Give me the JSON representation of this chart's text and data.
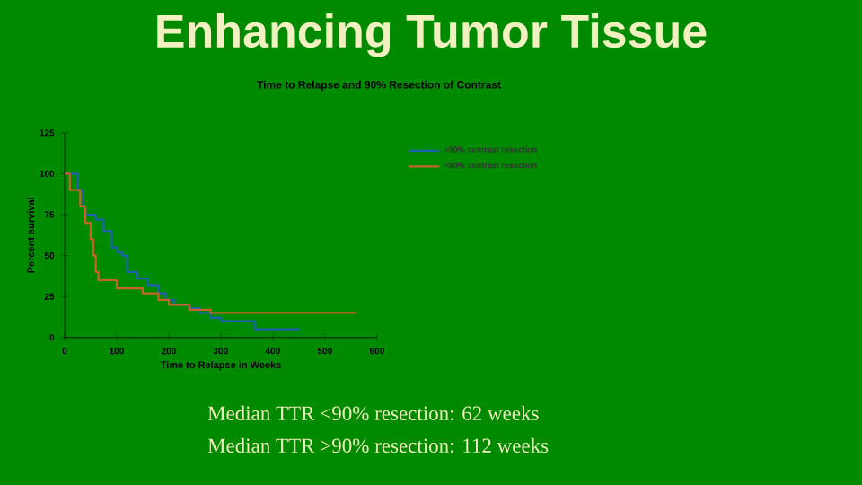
{
  "chart_data": {
    "type": "step",
    "title": "Enhancing Tumor Tissue",
    "subtitle": "Time to Relapse and 90% Resection of Contrast",
    "xlabel": "Time to Relapse in Weeks",
    "ylabel": "Percent survival",
    "xlim": [
      0,
      600
    ],
    "xticks": [
      0,
      100,
      200,
      300,
      400,
      500,
      600
    ],
    "ylim": [
      0,
      125
    ],
    "yticks": [
      0,
      25,
      50,
      75,
      100,
      125
    ],
    "legend": "top right",
    "grid": false,
    "series": [
      {
        "name": ">90% contrast resection",
        "color": "#2060b0",
        "x": [
          0,
          15,
          25,
          35,
          40,
          60,
          75,
          90,
          100,
          110,
          120,
          140,
          160,
          180,
          195,
          210,
          240,
          260,
          280,
          300,
          360,
          365,
          450
        ],
        "values": [
          100,
          100,
          90,
          80,
          75,
          72,
          65,
          55,
          52,
          50,
          40,
          36,
          32,
          27,
          23,
          20,
          18,
          15,
          12,
          10,
          10,
          5,
          5
        ]
      },
      {
        "name": "<90% contrast resection",
        "color": "#c8642a",
        "x": [
          0,
          10,
          30,
          40,
          50,
          55,
          60,
          65,
          100,
          150,
          180,
          200,
          240,
          280,
          560
        ],
        "values": [
          100,
          90,
          80,
          70,
          60,
          50,
          40,
          35,
          30,
          27,
          23,
          20,
          17,
          15,
          15
        ]
      }
    ],
    "annotations": [
      "Median TTR <90% resection: 62 weeks",
      "Median TTR >90% resection: 112 weeks"
    ]
  }
}
